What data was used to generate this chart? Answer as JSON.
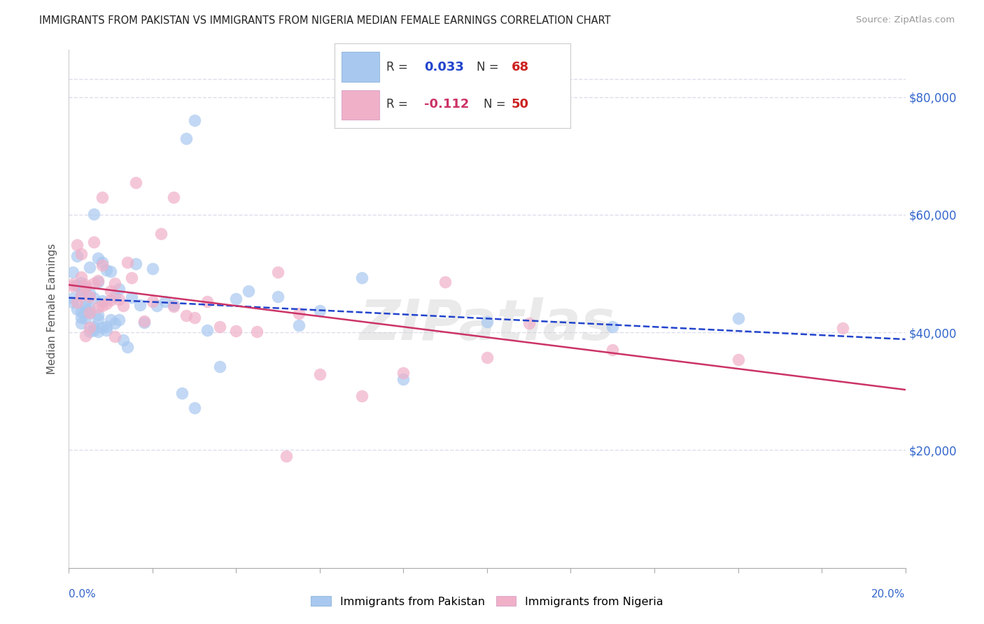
{
  "title": "IMMIGRANTS FROM PAKISTAN VS IMMIGRANTS FROM NIGERIA MEDIAN FEMALE EARNINGS CORRELATION CHART",
  "source": "Source: ZipAtlas.com",
  "ylabel": "Median Female Earnings",
  "xmin": 0.0,
  "xmax": 0.2,
  "ymin": 0,
  "ymax": 88000,
  "ytick_vals": [
    20000,
    40000,
    60000,
    80000
  ],
  "ytick_labels": [
    "$20,000",
    "$40,000",
    "$60,000",
    "$80,000"
  ],
  "pakistan_color": "#a8c8f0",
  "nigeria_color": "#f0b0c8",
  "pakistan_line_color": "#2244cc",
  "nigeria_line_color": "#cc3366",
  "pakistan_r": 0.033,
  "nigeria_r": -0.112,
  "pakistan_n": 68,
  "nigeria_n": 50,
  "pakistan_x": [
    0.001,
    0.001,
    0.001,
    0.002,
    0.002,
    0.002,
    0.002,
    0.003,
    0.003,
    0.003,
    0.003,
    0.003,
    0.003,
    0.004,
    0.004,
    0.004,
    0.004,
    0.004,
    0.005,
    0.005,
    0.005,
    0.005,
    0.005,
    0.006,
    0.006,
    0.006,
    0.006,
    0.007,
    0.007,
    0.007,
    0.007,
    0.007,
    0.008,
    0.008,
    0.008,
    0.009,
    0.009,
    0.009,
    0.01,
    0.01,
    0.011,
    0.011,
    0.012,
    0.012,
    0.013,
    0.014,
    0.015,
    0.016,
    0.017,
    0.018,
    0.02,
    0.021,
    0.023,
    0.025,
    0.027,
    0.03,
    0.033,
    0.036,
    0.04,
    0.043,
    0.05,
    0.055,
    0.06,
    0.07,
    0.08,
    0.1,
    0.13,
    0.16
  ],
  "pakistan_y": [
    46000,
    47000,
    45000,
    52000,
    50000,
    48000,
    44000,
    46000,
    44000,
    47000,
    45000,
    43000,
    46000,
    48000,
    44000,
    46000,
    43000,
    45000,
    46000,
    44000,
    47000,
    43000,
    45000,
    55000,
    46000,
    44000,
    42000,
    48000,
    46000,
    44000,
    42000,
    50000,
    56000,
    44000,
    46000,
    42000,
    44000,
    47000,
    46000,
    43000,
    44000,
    42000,
    46000,
    44000,
    43000,
    42000,
    45000,
    46000,
    44000,
    43000,
    46000,
    44000,
    45000,
    44000,
    30000,
    28000,
    44000,
    33000,
    46000,
    44000,
    47000,
    46000,
    44000,
    45000,
    33000,
    44000,
    44000,
    45000
  ],
  "nigeria_x": [
    0.001,
    0.001,
    0.002,
    0.002,
    0.003,
    0.003,
    0.003,
    0.004,
    0.004,
    0.004,
    0.005,
    0.005,
    0.005,
    0.006,
    0.006,
    0.007,
    0.007,
    0.008,
    0.008,
    0.009,
    0.01,
    0.01,
    0.011,
    0.011,
    0.012,
    0.013,
    0.014,
    0.015,
    0.016,
    0.018,
    0.02,
    0.022,
    0.025,
    0.028,
    0.03,
    0.033,
    0.036,
    0.04,
    0.045,
    0.05,
    0.055,
    0.06,
    0.07,
    0.08,
    0.09,
    0.1,
    0.11,
    0.13,
    0.16,
    0.185
  ],
  "nigeria_y": [
    50000,
    46000,
    55000,
    44000,
    46000,
    52000,
    43000,
    46000,
    44000,
    42000,
    48000,
    44000,
    42000,
    56000,
    46000,
    48000,
    44000,
    46000,
    43000,
    45000,
    48000,
    44000,
    46000,
    42000,
    46000,
    44000,
    56000,
    50000,
    62000,
    46000,
    44000,
    52000,
    46000,
    44000,
    42000,
    44000,
    40000,
    44000,
    42000,
    50000,
    44000,
    30000,
    30000,
    34000,
    44000,
    36000,
    44000,
    37000,
    36000,
    39000
  ],
  "watermark": "ZIPatlas",
  "background_color": "#ffffff",
  "grid_color": "#ddddee",
  "title_color": "#222222",
  "axis_label_color": "#3366cc",
  "ylabel_color": "#555555"
}
